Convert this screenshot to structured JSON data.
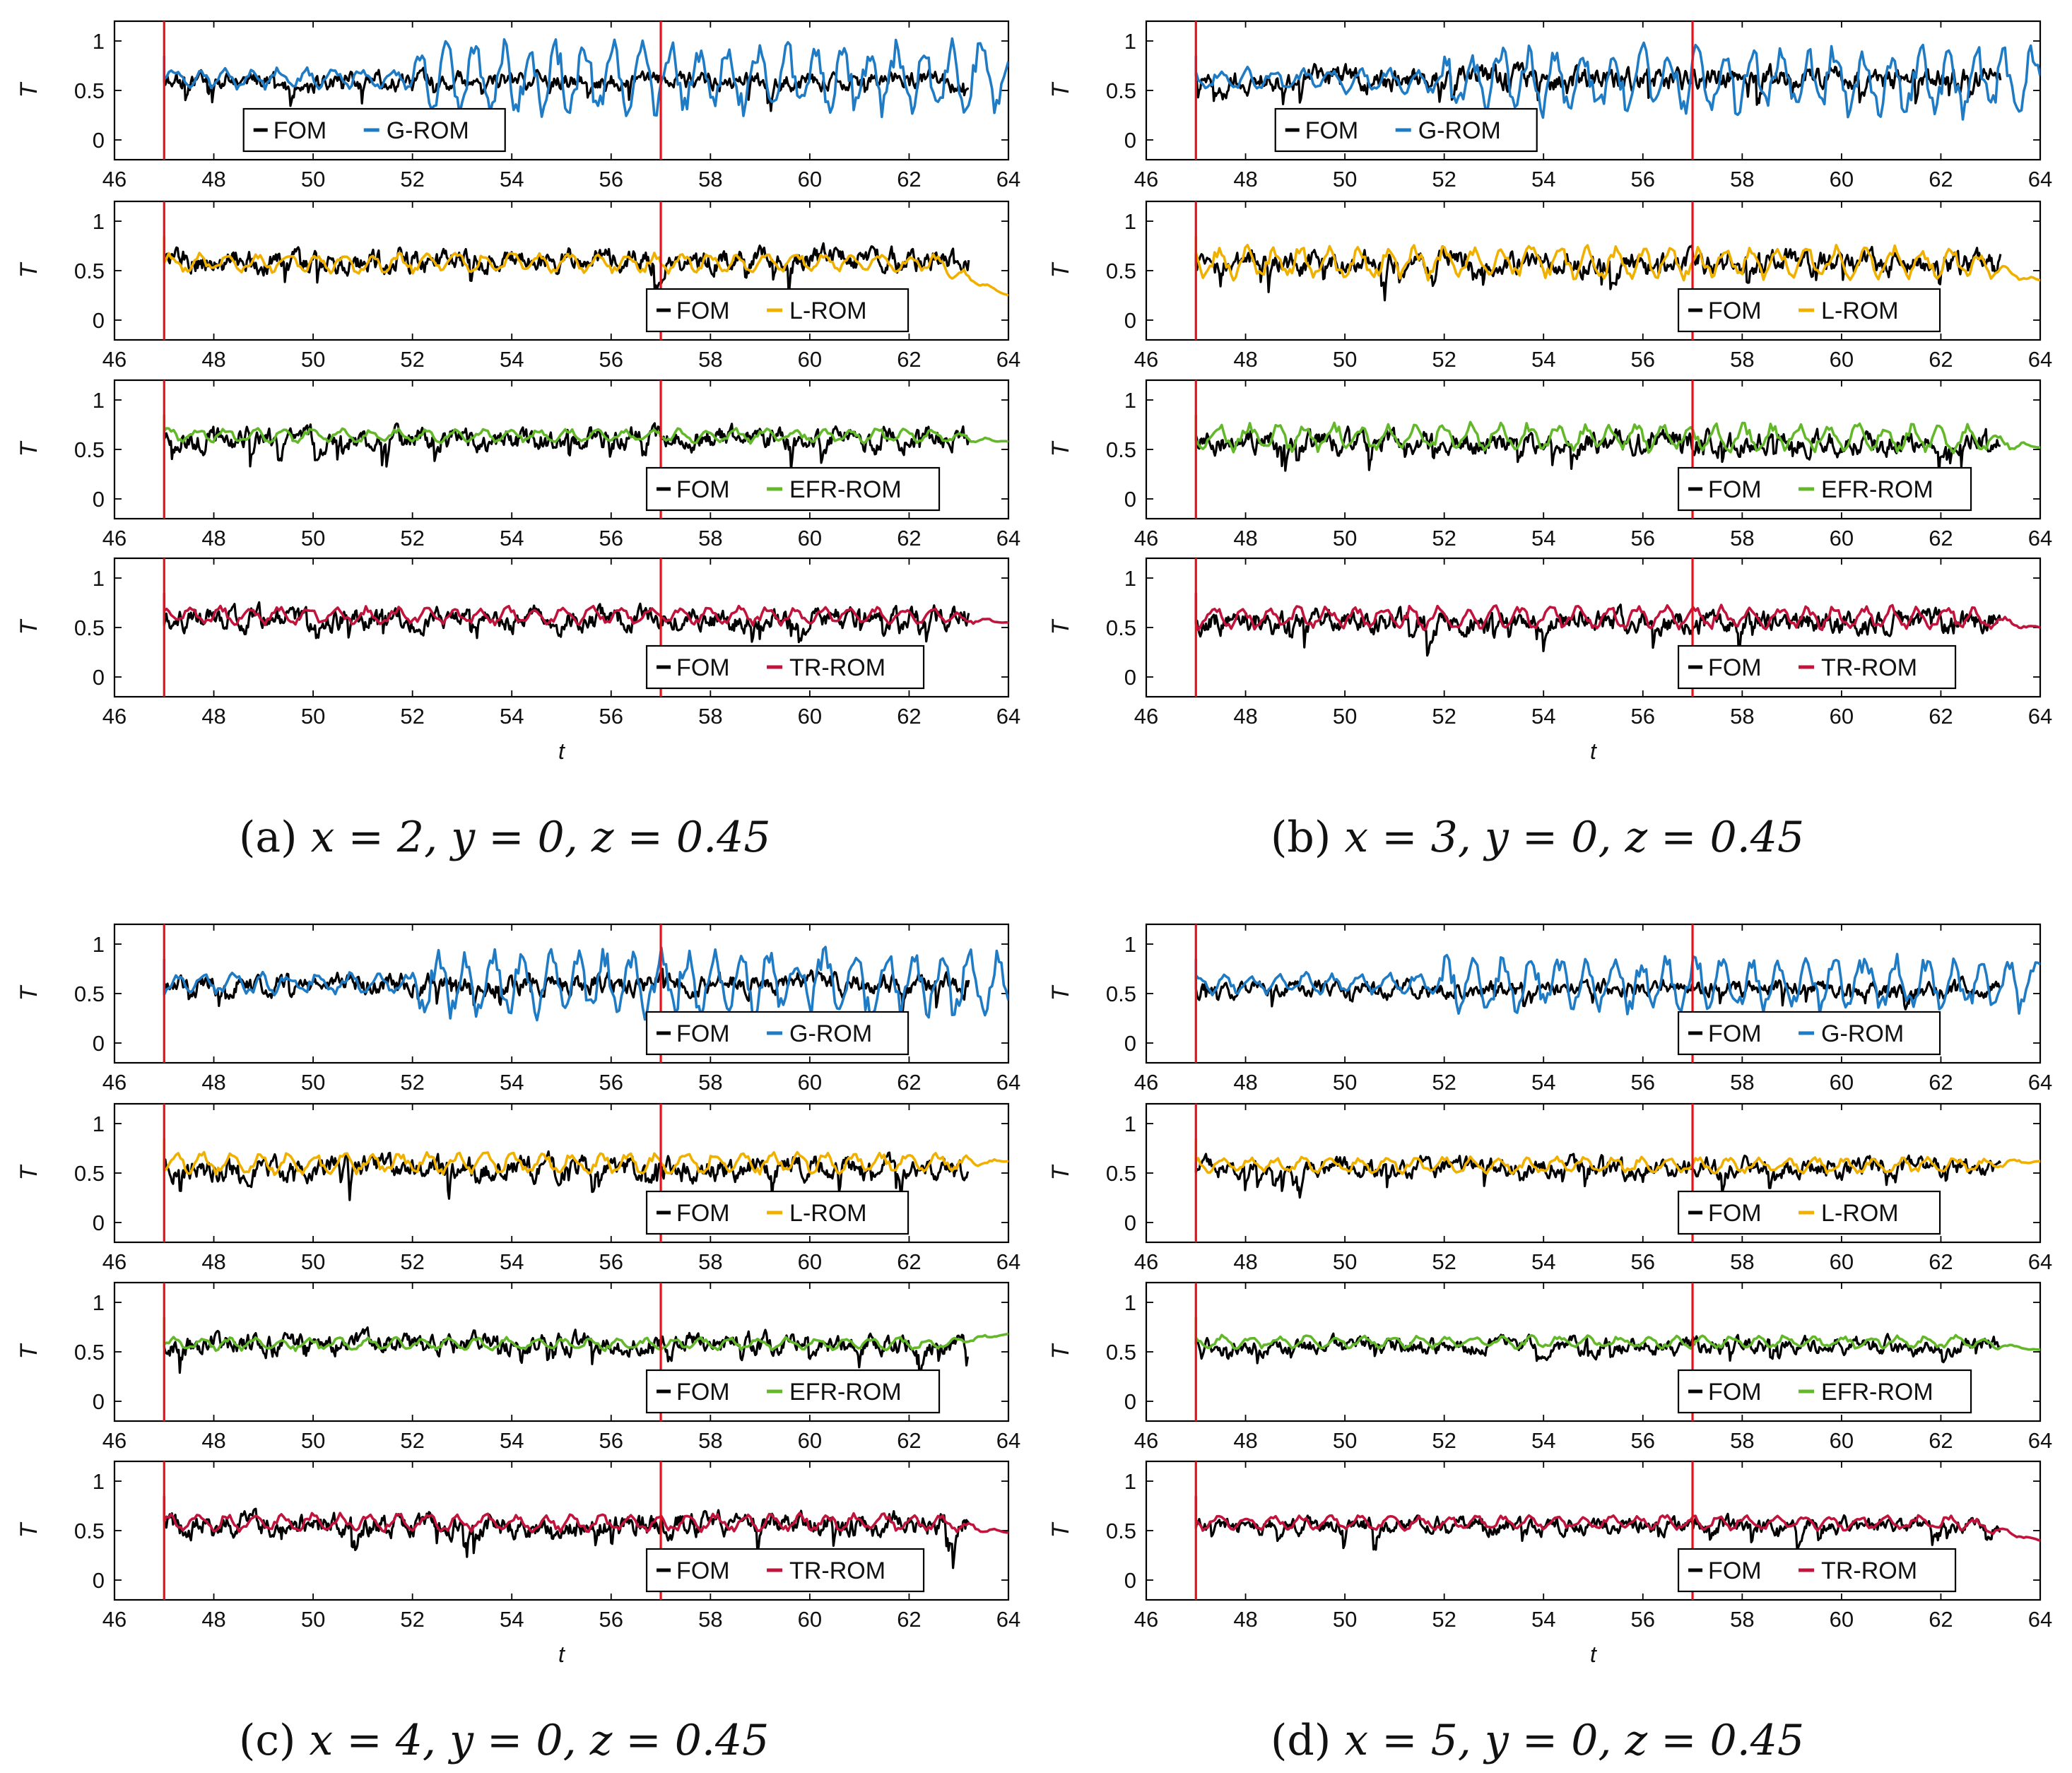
{
  "figure": {
    "shared": {
      "type": "line",
      "ylabel": "T",
      "xlabel": "t",
      "xlim": [
        46,
        64
      ],
      "ylim": [
        -0.2,
        1.2
      ],
      "xticks": [
        46,
        48,
        50,
        52,
        54,
        56,
        58,
        60,
        62,
        64
      ],
      "yticks": [
        0,
        0.5,
        1
      ],
      "ytick_labels": [
        "0",
        "0.5",
        "1"
      ],
      "red_vertical_lines_at": [
        47,
        57
      ],
      "fom_available_until": 63.2,
      "legend_reference_label": "FOM",
      "colors": {
        "FOM": "#000000",
        "G-ROM": "#1f7bc4",
        "L-ROM": "#f0b000",
        "EFR-ROM": "#63b82a",
        "TR-ROM": "#c0143c",
        "vline": "#e0141c"
      }
    },
    "panels": [
      {
        "id": "a",
        "caption_label": "(a)",
        "caption_math": "x = 2,  y = 0,  z = 0.45"
      },
      {
        "id": "b",
        "caption_label": "(b)",
        "caption_math": "x = 3,  y = 0,  z = 0.45"
      },
      {
        "id": "c",
        "caption_label": "(c)",
        "caption_math": "x = 4,  y = 0,  z = 0.45"
      },
      {
        "id": "d",
        "caption_label": "(d)",
        "caption_math": "x = 5,  y = 0,  z = 0.45"
      }
    ]
  },
  "chart_data": [
    {
      "panel": "a",
      "type": "line",
      "rows": [
        {
          "model": "G-ROM",
          "legend": [
            "FOM",
            "G-ROM"
          ],
          "legend_position": "bottom-left",
          "series": [
            {
              "name": "FOM",
              "mean": 0.6,
              "amp": 0.08
            },
            {
              "name": "G-ROM",
              "mean": 0.62,
              "amp": 0.12,
              "amp_after_52": 0.42
            }
          ]
        },
        {
          "model": "L-ROM",
          "legend": [
            "FOM",
            "L-ROM"
          ],
          "legend_position": "bottom-right",
          "series": [
            {
              "name": "FOM",
              "mean": 0.6,
              "amp": 0.1
            },
            {
              "name": "L-ROM",
              "mean": 0.58,
              "amp": 0.11,
              "end_value": 0.25
            }
          ]
        },
        {
          "model": "EFR-ROM",
          "legend": [
            "FOM",
            "EFR-ROM"
          ],
          "legend_position": "bottom-right",
          "series": [
            {
              "name": "FOM",
              "mean": 0.6,
              "amp": 0.1
            },
            {
              "name": "EFR-ROM",
              "mean": 0.64,
              "amp": 0.08,
              "end_value": 0.58
            }
          ]
        },
        {
          "model": "TR-ROM",
          "legend": [
            "FOM",
            "TR-ROM"
          ],
          "legend_position": "bottom-right",
          "series": [
            {
              "name": "FOM",
              "mean": 0.58,
              "amp": 0.1
            },
            {
              "name": "TR-ROM",
              "mean": 0.62,
              "amp": 0.1,
              "end_value": 0.55
            }
          ]
        }
      ]
    },
    {
      "panel": "b",
      "type": "line",
      "rows": [
        {
          "model": "G-ROM",
          "legend": [
            "FOM",
            "G-ROM"
          ],
          "legend_position": "bottom-left",
          "series": [
            {
              "name": "FOM",
              "mean": 0.62,
              "amp": 0.1
            },
            {
              "name": "G-ROM",
              "mean": 0.6,
              "amp": 0.14,
              "amp_after_52": 0.4
            }
          ]
        },
        {
          "model": "L-ROM",
          "legend": [
            "FOM",
            "L-ROM"
          ],
          "legend_position": "bottom-right",
          "series": [
            {
              "name": "FOM",
              "mean": 0.58,
              "amp": 0.1
            },
            {
              "name": "L-ROM",
              "mean": 0.58,
              "amp": 0.18,
              "end_value": 0.4
            }
          ]
        },
        {
          "model": "EFR-ROM",
          "legend": [
            "FOM",
            "EFR-ROM"
          ],
          "legend_position": "bottom-right",
          "series": [
            {
              "name": "FOM",
              "mean": 0.58,
              "amp": 0.1
            },
            {
              "name": "EFR-ROM",
              "mean": 0.62,
              "amp": 0.16,
              "end_value": 0.52
            }
          ]
        },
        {
          "model": "TR-ROM",
          "legend": [
            "FOM",
            "TR-ROM"
          ],
          "legend_position": "bottom-right",
          "series": [
            {
              "name": "FOM",
              "mean": 0.56,
              "amp": 0.1
            },
            {
              "name": "TR-ROM",
              "mean": 0.6,
              "amp": 0.13,
              "end_value": 0.5
            }
          ]
        }
      ]
    },
    {
      "panel": "c",
      "type": "line",
      "rows": [
        {
          "model": "G-ROM",
          "legend": [
            "FOM",
            "G-ROM"
          ],
          "legend_position": "bottom-right",
          "series": [
            {
              "name": "FOM",
              "mean": 0.6,
              "amp": 0.09
            },
            {
              "name": "G-ROM",
              "mean": 0.6,
              "amp": 0.12,
              "amp_after_52": 0.38
            }
          ]
        },
        {
          "model": "L-ROM",
          "legend": [
            "FOM",
            "L-ROM"
          ],
          "legend_position": "bottom-right",
          "series": [
            {
              "name": "FOM",
              "mean": 0.55,
              "amp": 0.1
            },
            {
              "name": "L-ROM",
              "mean": 0.6,
              "amp": 0.12,
              "end_value": 0.62
            }
          ]
        },
        {
          "model": "EFR-ROM",
          "legend": [
            "FOM",
            "EFR-ROM"
          ],
          "legend_position": "bottom-right",
          "series": [
            {
              "name": "FOM",
              "mean": 0.58,
              "amp": 0.09
            },
            {
              "name": "EFR-ROM",
              "mean": 0.58,
              "amp": 0.07,
              "end_value": 0.68
            }
          ]
        },
        {
          "model": "TR-ROM",
          "legend": [
            "FOM",
            "TR-ROM"
          ],
          "legend_position": "bottom-right",
          "series": [
            {
              "name": "FOM",
              "mean": 0.56,
              "amp": 0.1
            },
            {
              "name": "TR-ROM",
              "mean": 0.58,
              "amp": 0.1,
              "end_value": 0.48
            }
          ]
        }
      ]
    },
    {
      "panel": "d",
      "type": "line",
      "rows": [
        {
          "model": "G-ROM",
          "legend": [
            "FOM",
            "G-ROM"
          ],
          "legend_position": "bottom-right",
          "series": [
            {
              "name": "FOM",
              "mean": 0.55,
              "amp": 0.07
            },
            {
              "name": "G-ROM",
              "mean": 0.6,
              "amp": 0.12,
              "amp_after_52": 0.32
            }
          ]
        },
        {
          "model": "L-ROM",
          "legend": [
            "FOM",
            "L-ROM"
          ],
          "legend_position": "bottom-right",
          "series": [
            {
              "name": "FOM",
              "mean": 0.56,
              "amp": 0.08
            },
            {
              "name": "L-ROM",
              "mean": 0.58,
              "amp": 0.09,
              "end_value": 0.62
            }
          ]
        },
        {
          "model": "EFR-ROM",
          "legend": [
            "FOM",
            "EFR-ROM"
          ],
          "legend_position": "bottom-right",
          "series": [
            {
              "name": "FOM",
              "mean": 0.56,
              "amp": 0.07
            },
            {
              "name": "EFR-ROM",
              "mean": 0.6,
              "amp": 0.07,
              "end_value": 0.52
            }
          ]
        },
        {
          "model": "TR-ROM",
          "legend": [
            "FOM",
            "TR-ROM"
          ],
          "legend_position": "bottom-right",
          "series": [
            {
              "name": "FOM",
              "mean": 0.55,
              "amp": 0.07
            },
            {
              "name": "TR-ROM",
              "mean": 0.58,
              "amp": 0.08,
              "end_value": 0.4
            }
          ]
        }
      ]
    }
  ]
}
